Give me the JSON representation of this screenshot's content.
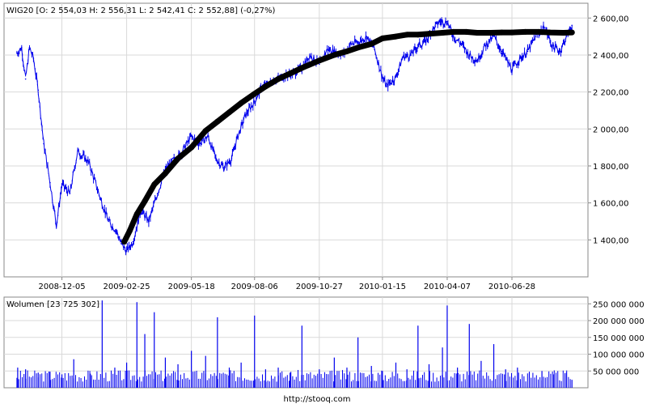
{
  "footer": {
    "url": "http://stooq.com"
  },
  "chart_data": [
    {
      "type": "line",
      "ohlc_label": {
        "symbol": "WIG20",
        "open": "O: 2 554,03",
        "high": "H: 2 556,31",
        "low": "L: 2 542,41",
        "close": "C: 2 552,88",
        "change": "(-0,27%)"
      },
      "x_tick_labels": [
        "2008-12-05",
        "2009-02-25",
        "2009-05-18",
        "2009-08-06",
        "2009-10-27",
        "2010-01-15",
        "2010-04-07",
        "2010-06-28"
      ],
      "y_tick_labels": [
        "2 600,00",
        "2 400,00",
        "2 200,00",
        "2 000,00",
        "1 800,00",
        "1 600,00",
        "1 400,00"
      ],
      "y_tick_values": [
        2600,
        2400,
        2200,
        2000,
        1800,
        1600,
        1400
      ],
      "ylim": [
        1200,
        2680
      ],
      "grid": true,
      "y_axis_side": "right",
      "series": [
        {
          "color": "#0000ee",
          "style": "ohlc-bars",
          "x": [
            "2008-10-09",
            "2008-10-15",
            "2008-10-20",
            "2008-10-25",
            "2008-10-30",
            "2008-11-05",
            "2008-11-12",
            "2008-11-20",
            "2008-11-28",
            "2008-12-05",
            "2008-12-15",
            "2008-12-25",
            "2009-01-08",
            "2009-01-20",
            "2009-02-02",
            "2009-02-12",
            "2009-02-18",
            "2009-02-25",
            "2009-03-05",
            "2009-03-15",
            "2009-03-25",
            "2009-04-05",
            "2009-04-15",
            "2009-04-25",
            "2009-05-05",
            "2009-05-18",
            "2009-05-28",
            "2009-06-08",
            "2009-06-18",
            "2009-06-28",
            "2009-07-08",
            "2009-07-15",
            "2009-07-25",
            "2009-08-06",
            "2009-08-16",
            "2009-08-26",
            "2009-09-05",
            "2009-09-15",
            "2009-09-25",
            "2009-10-05",
            "2009-10-15",
            "2009-10-27",
            "2009-11-06",
            "2009-11-16",
            "2009-11-26",
            "2009-12-06",
            "2009-12-16",
            "2009-12-26",
            "2010-01-05",
            "2010-01-15",
            "2010-01-20",
            "2010-02-01",
            "2010-02-10",
            "2010-02-20",
            "2010-03-01",
            "2010-03-10",
            "2010-03-20",
            "2010-03-28",
            "2010-04-07",
            "2010-04-15",
            "2010-04-25",
            "2010-05-05",
            "2010-05-15",
            "2010-05-25",
            "2010-06-05",
            "2010-06-15",
            "2010-06-28",
            "2010-07-08",
            "2010-07-18",
            "2010-07-28",
            "2010-08-08",
            "2010-08-18",
            "2010-08-28",
            "2010-09-05",
            "2010-09-12"
          ],
          "y": [
            2410,
            2440,
            2270,
            2440,
            2380,
            2210,
            1920,
            1710,
            1480,
            1700,
            1650,
            1880,
            1820,
            1660,
            1500,
            1450,
            1380,
            1340,
            1390,
            1560,
            1500,
            1650,
            1780,
            1830,
            1870,
            1960,
            1920,
            1960,
            1840,
            1790,
            1840,
            1950,
            2070,
            2150,
            2230,
            2250,
            2270,
            2290,
            2300,
            2330,
            2400,
            2350,
            2430,
            2420,
            2400,
            2460,
            2470,
            2500,
            2430,
            2280,
            2230,
            2280,
            2390,
            2400,
            2450,
            2470,
            2540,
            2580,
            2580,
            2500,
            2460,
            2400,
            2370,
            2450,
            2500,
            2420,
            2320,
            2380,
            2420,
            2500,
            2550,
            2450,
            2420,
            2500,
            2560
          ]
        },
        {
          "color": "#000000",
          "style": "moving-average",
          "x": [
            "2009-02-22",
            "2009-03-01",
            "2009-03-10",
            "2009-03-20",
            "2009-04-01",
            "2009-04-15",
            "2009-05-01",
            "2009-05-18",
            "2009-06-05",
            "2009-06-20",
            "2009-07-05",
            "2009-07-20",
            "2009-08-06",
            "2009-08-20",
            "2009-09-05",
            "2009-09-20",
            "2009-10-05",
            "2009-10-27",
            "2009-11-15",
            "2009-12-01",
            "2009-12-15",
            "2010-01-01",
            "2010-01-15",
            "2010-02-01",
            "2010-02-15",
            "2010-03-01",
            "2010-03-15",
            "2010-04-01",
            "2010-04-15",
            "2010-05-01",
            "2010-05-15",
            "2010-06-01",
            "2010-06-15",
            "2010-06-28",
            "2010-07-15",
            "2010-08-01",
            "2010-08-15",
            "2010-09-01",
            "2010-09-12"
          ],
          "y": [
            1390,
            1450,
            1540,
            1610,
            1700,
            1760,
            1840,
            1900,
            1990,
            2040,
            2090,
            2140,
            2190,
            2230,
            2270,
            2300,
            2330,
            2370,
            2400,
            2420,
            2440,
            2460,
            2490,
            2500,
            2510,
            2510,
            2515,
            2520,
            2525,
            2525,
            2520,
            2520,
            2522,
            2522,
            2525,
            2525,
            2522,
            2520,
            2522
          ]
        }
      ]
    },
    {
      "type": "bar",
      "title": "Wolumen [23 725 302]",
      "y_tick_labels": [
        "250 000 000",
        "200 000 000",
        "150 000 000",
        "100 000 000",
        "50 000 000"
      ],
      "y_tick_values": [
        250000000,
        200000000,
        150000000,
        100000000,
        50000000
      ],
      "ylim": [
        0,
        270000000
      ],
      "grid": true,
      "y_axis_side": "right",
      "color": "#0000ee",
      "x": [
        "2008-10-10",
        "2008-10-20",
        "2008-11-05",
        "2008-11-20",
        "2008-12-05",
        "2008-12-20",
        "2009-01-10",
        "2009-01-25",
        "2009-02-10",
        "2009-02-25",
        "2009-03-10",
        "2009-03-20",
        "2009-04-01",
        "2009-04-15",
        "2009-05-01",
        "2009-05-18",
        "2009-06-05",
        "2009-06-20",
        "2009-07-05",
        "2009-07-20",
        "2009-08-06",
        "2009-08-20",
        "2009-09-05",
        "2009-09-20",
        "2009-10-05",
        "2009-10-27",
        "2009-11-15",
        "2009-12-01",
        "2009-12-15",
        "2010-01-01",
        "2010-01-15",
        "2010-02-01",
        "2010-02-15",
        "2010-03-01",
        "2010-03-15",
        "2010-04-01",
        "2010-04-07",
        "2010-04-20",
        "2010-05-05",
        "2010-05-20",
        "2010-06-05",
        "2010-06-20",
        "2010-07-05",
        "2010-07-20",
        "2010-08-05",
        "2010-08-20",
        "2010-09-05",
        "2010-09-12"
      ],
      "values": [
        60000000,
        55000000,
        45000000,
        48000000,
        40000000,
        85000000,
        42000000,
        260000000,
        60000000,
        75000000,
        255000000,
        160000000,
        225000000,
        90000000,
        70000000,
        110000000,
        95000000,
        210000000,
        60000000,
        75000000,
        215000000,
        55000000,
        60000000,
        45000000,
        185000000,
        55000000,
        90000000,
        60000000,
        150000000,
        65000000,
        50000000,
        75000000,
        55000000,
        185000000,
        70000000,
        120000000,
        245000000,
        60000000,
        190000000,
        80000000,
        130000000,
        55000000,
        60000000,
        45000000,
        50000000,
        40000000,
        45000000,
        23725302
      ]
    }
  ]
}
